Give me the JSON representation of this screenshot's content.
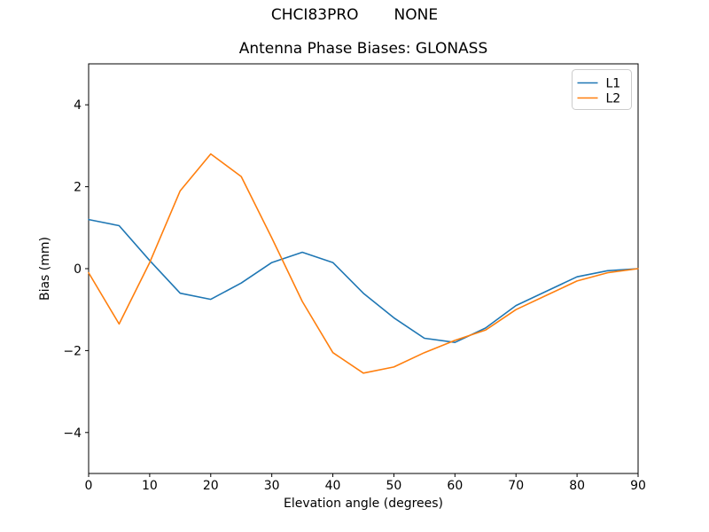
{
  "figure": {
    "suptitle_left": "CHCI83PRO",
    "suptitle_right": "NONE",
    "background_color": "#ffffff",
    "text_color": "#000000"
  },
  "chart_data": {
    "type": "line",
    "title": "Antenna Phase Biases: GLONASS",
    "xlabel": "Elevation angle (degrees)",
    "ylabel": "Bias (mm)",
    "xlim": [
      0,
      90
    ],
    "ylim": [
      -5,
      5
    ],
    "xticks": [
      0,
      10,
      20,
      30,
      40,
      50,
      60,
      70,
      80,
      90
    ],
    "xtick_labels": [
      "0",
      "10",
      "20",
      "30",
      "40",
      "50",
      "60",
      "70",
      "80",
      "90"
    ],
    "yticks": [
      -4,
      -2,
      0,
      2,
      4
    ],
    "ytick_labels": [
      "−4",
      "−2",
      "0",
      "2",
      "4"
    ],
    "grid": false,
    "legend": {
      "position": "upper right",
      "entries": [
        "L1",
        "L2"
      ]
    },
    "x": [
      0,
      5,
      10,
      15,
      20,
      25,
      30,
      35,
      40,
      45,
      50,
      55,
      60,
      65,
      70,
      75,
      80,
      85,
      90
    ],
    "series": [
      {
        "name": "L1",
        "color": "#1f77b4",
        "values": [
          1.2,
          1.05,
          0.2,
          -0.6,
          -0.75,
          -0.35,
          0.15,
          0.4,
          0.15,
          -0.6,
          -1.2,
          -1.7,
          -1.8,
          -1.45,
          -0.9,
          -0.55,
          -0.2,
          -0.05,
          0.0
        ]
      },
      {
        "name": "L2",
        "color": "#ff7f0e",
        "values": [
          -0.1,
          -1.35,
          0.15,
          1.9,
          2.8,
          2.25,
          0.75,
          -0.8,
          -2.05,
          -2.55,
          -2.4,
          -2.05,
          -1.75,
          -1.5,
          -1.0,
          -0.65,
          -0.3,
          -0.1,
          0.0
        ]
      }
    ]
  }
}
